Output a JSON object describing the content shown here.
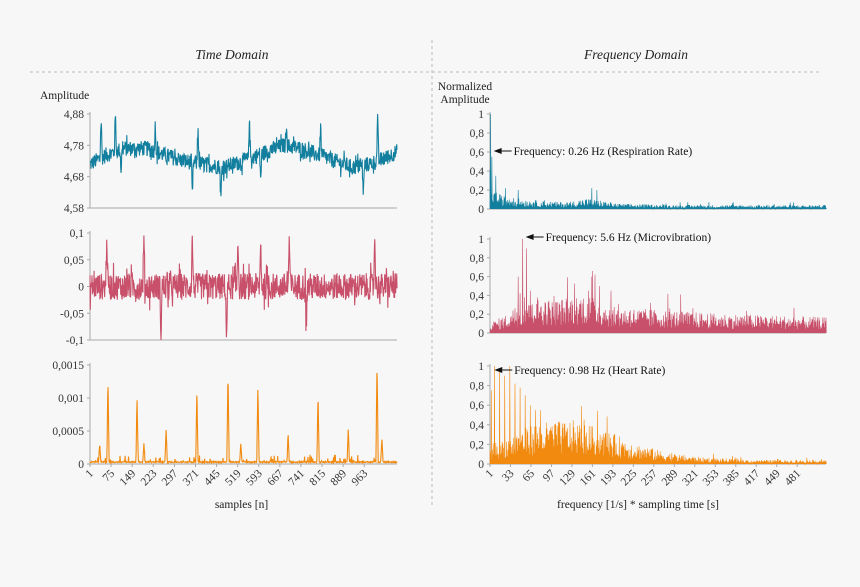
{
  "titles": {
    "left": "Time Domain",
    "right": "Frequency Domain"
  },
  "colors": {
    "respiration": "#137f9e",
    "microvibration": "#c8506a",
    "heart": "#f28a0f",
    "axis": "#aaaaaa",
    "divider": "#bbbbbb"
  },
  "chart_data": [
    {
      "type": "line",
      "panel": "time-1",
      "ylabel": "Amplitude",
      "xlim": [
        1,
        1078
      ],
      "ylim": [
        4.58,
        4.88
      ],
      "yticks": [
        "4,88",
        "4,78",
        "4,68",
        "4,58"
      ],
      "ytick_values": [
        4.88,
        4.78,
        4.68,
        4.58
      ],
      "trend_x": [
        1,
        60,
        120,
        200,
        260,
        330,
        400,
        470,
        540,
        620,
        680,
        740,
        800,
        860,
        920,
        980,
        1040,
        1078
      ],
      "trend_y": [
        4.72,
        4.75,
        4.77,
        4.77,
        4.75,
        4.73,
        4.72,
        4.71,
        4.73,
        4.76,
        4.78,
        4.77,
        4.75,
        4.73,
        4.71,
        4.72,
        4.74,
        4.76
      ],
      "spikes_x": [
        40,
        90,
        110,
        230,
        360,
        380,
        460,
        560,
        600,
        690,
        810,
        960,
        1010
      ],
      "spikes_y": [
        4.87,
        4.88,
        4.7,
        4.85,
        4.62,
        4.84,
        4.6,
        4.87,
        4.67,
        4.86,
        4.83,
        4.62,
        4.87
      ]
    },
    {
      "type": "line",
      "panel": "time-2",
      "xlim": [
        1,
        1078
      ],
      "ylim": [
        -0.1,
        0.1
      ],
      "yticks": [
        "0,1",
        "0,05",
        "0",
        "-0,05",
        "-0,1"
      ],
      "ytick_values": [
        0.1,
        0.05,
        0,
        -0.05,
        -0.1
      ],
      "trend_x": [
        1,
        1078
      ],
      "trend_y": [
        0,
        0
      ],
      "spikes_x": [
        60,
        190,
        250,
        360,
        480,
        520,
        600,
        700,
        760,
        1000
      ],
      "spikes_y": [
        0.1,
        0.09,
        -0.09,
        0.095,
        -0.1,
        0.1,
        0.085,
        0.09,
        -0.07,
        0.1
      ]
    },
    {
      "type": "line",
      "panel": "time-3",
      "xlabel": "samples [n]",
      "xlim": [
        1,
        1078
      ],
      "ylim": [
        0,
        0.0015
      ],
      "yticks": [
        "0,0015",
        "0,001",
        "0,0005",
        "0"
      ],
      "ytick_values": [
        0.0015,
        0.001,
        0.0005,
        0
      ],
      "xticks": [
        "1",
        "75",
        "149",
        "223",
        "297",
        "371",
        "445",
        "519",
        "593",
        "667",
        "741",
        "815",
        "889",
        "963"
      ],
      "xtick_values": [
        1,
        75,
        149,
        223,
        297,
        371,
        445,
        519,
        593,
        667,
        741,
        815,
        889,
        963
      ],
      "trend_x": [
        1,
        1078
      ],
      "trend_y": [
        2e-05,
        2e-05
      ],
      "spikes_x": [
        35,
        64,
        166,
        190,
        268,
        376,
        485,
        530,
        590,
        696,
        801,
        907,
        1008,
        1025
      ],
      "spikes_y": [
        0.0003,
        0.00128,
        0.001,
        0.0003,
        0.00052,
        0.00115,
        0.0014,
        0.0003,
        0.00118,
        0.00045,
        0.00108,
        0.00052,
        0.00152,
        0.0004
      ]
    },
    {
      "type": "bar",
      "panel": "freq-1",
      "ylabel": "Normalized Amplitude",
      "xlim": [
        1,
        526
      ],
      "ylim": [
        0,
        1
      ],
      "yticks": [
        "1",
        "0,8",
        "0,6",
        "0,4",
        "0,2",
        "0"
      ],
      "ytick_values": [
        1,
        0.8,
        0.6,
        0.4,
        0.2,
        0
      ],
      "envelope_x": [
        1,
        5,
        20,
        60,
        120,
        150,
        170,
        200,
        300,
        526
      ],
      "envelope_y": [
        0.3,
        0.15,
        0.1,
        0.07,
        0.05,
        0.08,
        0.07,
        0.04,
        0.03,
        0.03
      ],
      "peaks_x": [
        2,
        4,
        10,
        25,
        45,
        160,
        168
      ],
      "peaks_y": [
        1,
        0.55,
        0.35,
        0.22,
        0.2,
        0.22,
        0.2
      ],
      "annotation": "Frequency: 0.26 Hz (Respiration Rate)"
    },
    {
      "type": "bar",
      "panel": "freq-2",
      "xlim": [
        1,
        526
      ],
      "ylim": [
        0,
        1
      ],
      "yticks": [
        "1",
        "0,8",
        "0,6",
        "0,4",
        "0,2",
        "0"
      ],
      "ytick_values": [
        1,
        0.8,
        0.6,
        0.4,
        0.2,
        0
      ],
      "envelope_x": [
        1,
        30,
        60,
        100,
        150,
        190,
        260,
        350,
        526
      ],
      "envelope_y": [
        0.08,
        0.15,
        0.3,
        0.25,
        0.3,
        0.2,
        0.18,
        0.15,
        0.12
      ],
      "peaks_x": [
        45,
        52,
        58,
        64,
        160,
        165,
        172
      ],
      "peaks_y": [
        0.6,
        1,
        0.9,
        0.45,
        0.6,
        0.62,
        0.5
      ],
      "annotation": "Frequency: 5.6 Hz (Microvibration)"
    },
    {
      "type": "bar",
      "panel": "freq-3",
      "xlabel": "frequency [1/s] * sampling time [s]",
      "xlim": [
        1,
        526
      ],
      "ylim": [
        0,
        1
      ],
      "yticks": [
        "1",
        "0,8",
        "0,6",
        "0,4",
        "0,2",
        "0"
      ],
      "ytick_values": [
        1,
        0.8,
        0.6,
        0.4,
        0.2,
        0
      ],
      "xticks": [
        "1",
        "33",
        "65",
        "97",
        "129",
        "161",
        "193",
        "225",
        "257",
        "289",
        "321",
        "353",
        "385",
        "417",
        "449",
        "481"
      ],
      "xtick_values": [
        1,
        33,
        65,
        97,
        129,
        161,
        193,
        225,
        257,
        289,
        321,
        353,
        385,
        417,
        449,
        481
      ],
      "envelope_x": [
        1,
        30,
        70,
        130,
        180,
        230,
        280,
        330,
        400,
        526
      ],
      "envelope_y": [
        0.15,
        0.2,
        0.3,
        0.32,
        0.25,
        0.15,
        0.08,
        0.05,
        0.03,
        0.03
      ],
      "peaks_x": [
        3,
        8,
        16,
        24,
        32,
        40,
        48,
        56,
        64,
        72
      ],
      "peaks_y": [
        0.75,
        1,
        0.97,
        0.9,
        0.87,
        0.82,
        0.78,
        0.7,
        0.6,
        0.55
      ],
      "annotation": "Frequency: 0.98 Hz (Heart Rate)"
    }
  ]
}
